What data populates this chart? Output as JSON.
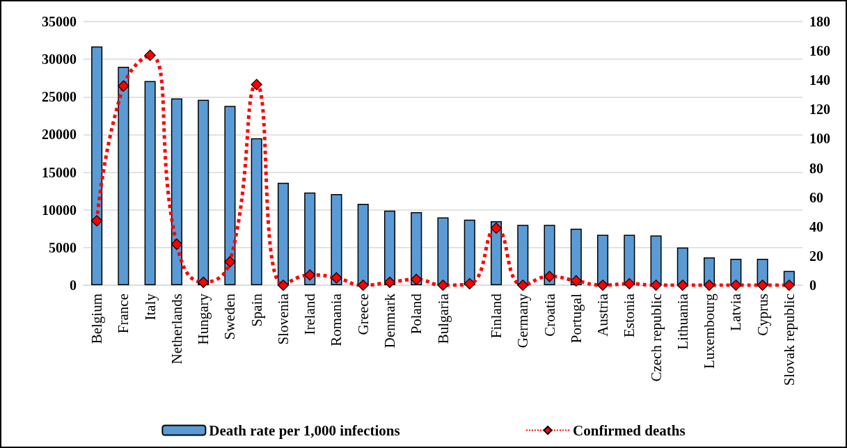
{
  "chart_data": {
    "type": "bar",
    "categories": [
      "Belgium",
      "France",
      "Italy",
      "Netherlands",
      "Hungary",
      "Sweden",
      "Spain",
      "Slovenia",
      "Ireland",
      "Romania",
      "Greece",
      "Denmark",
      "Poland",
      "Bulgaria",
      null,
      "Finland",
      "Germany",
      "Croatia",
      "Portugal",
      "Austria",
      "Estonia",
      "Czech republic",
      "Lithuania",
      "Luxembourg",
      "Latvia",
      "Cyprus",
      "Slovak republic"
    ],
    "series": [
      {
        "name": "Death rate per 1,000 infections",
        "color": "#5b9bd5",
        "axis": "y",
        "values": [
          31700,
          29000,
          27100,
          24800,
          24600,
          23800,
          19500,
          13600,
          12300,
          12100,
          10800,
          9900,
          9700,
          9000,
          8700,
          8500,
          8000,
          8000,
          7500,
          6700,
          6700,
          6600,
          5000,
          3700,
          3500,
          3500,
          1900
        ]
      },
      {
        "name": "Confirmed deaths",
        "type": "line",
        "color": "#ff0000",
        "axis": "y2",
        "marker": "diamond",
        "line_style": "dotted",
        "values": [
          44,
          136,
          157,
          28,
          2,
          16,
          137,
          0,
          7,
          5,
          0,
          2,
          4,
          0,
          1,
          39,
          0,
          6,
          3,
          0,
          1,
          0,
          0,
          0,
          0,
          0,
          0
        ]
      }
    ],
    "ylim": [
      0,
      35000
    ],
    "yticks": [
      0,
      5000,
      10000,
      15000,
      20000,
      25000,
      30000,
      35000
    ],
    "y2lim": [
      0,
      180
    ],
    "y2ticks": [
      0,
      20,
      40,
      60,
      80,
      100,
      120,
      140,
      160,
      180
    ],
    "grid": "y",
    "legend": "bottom"
  }
}
